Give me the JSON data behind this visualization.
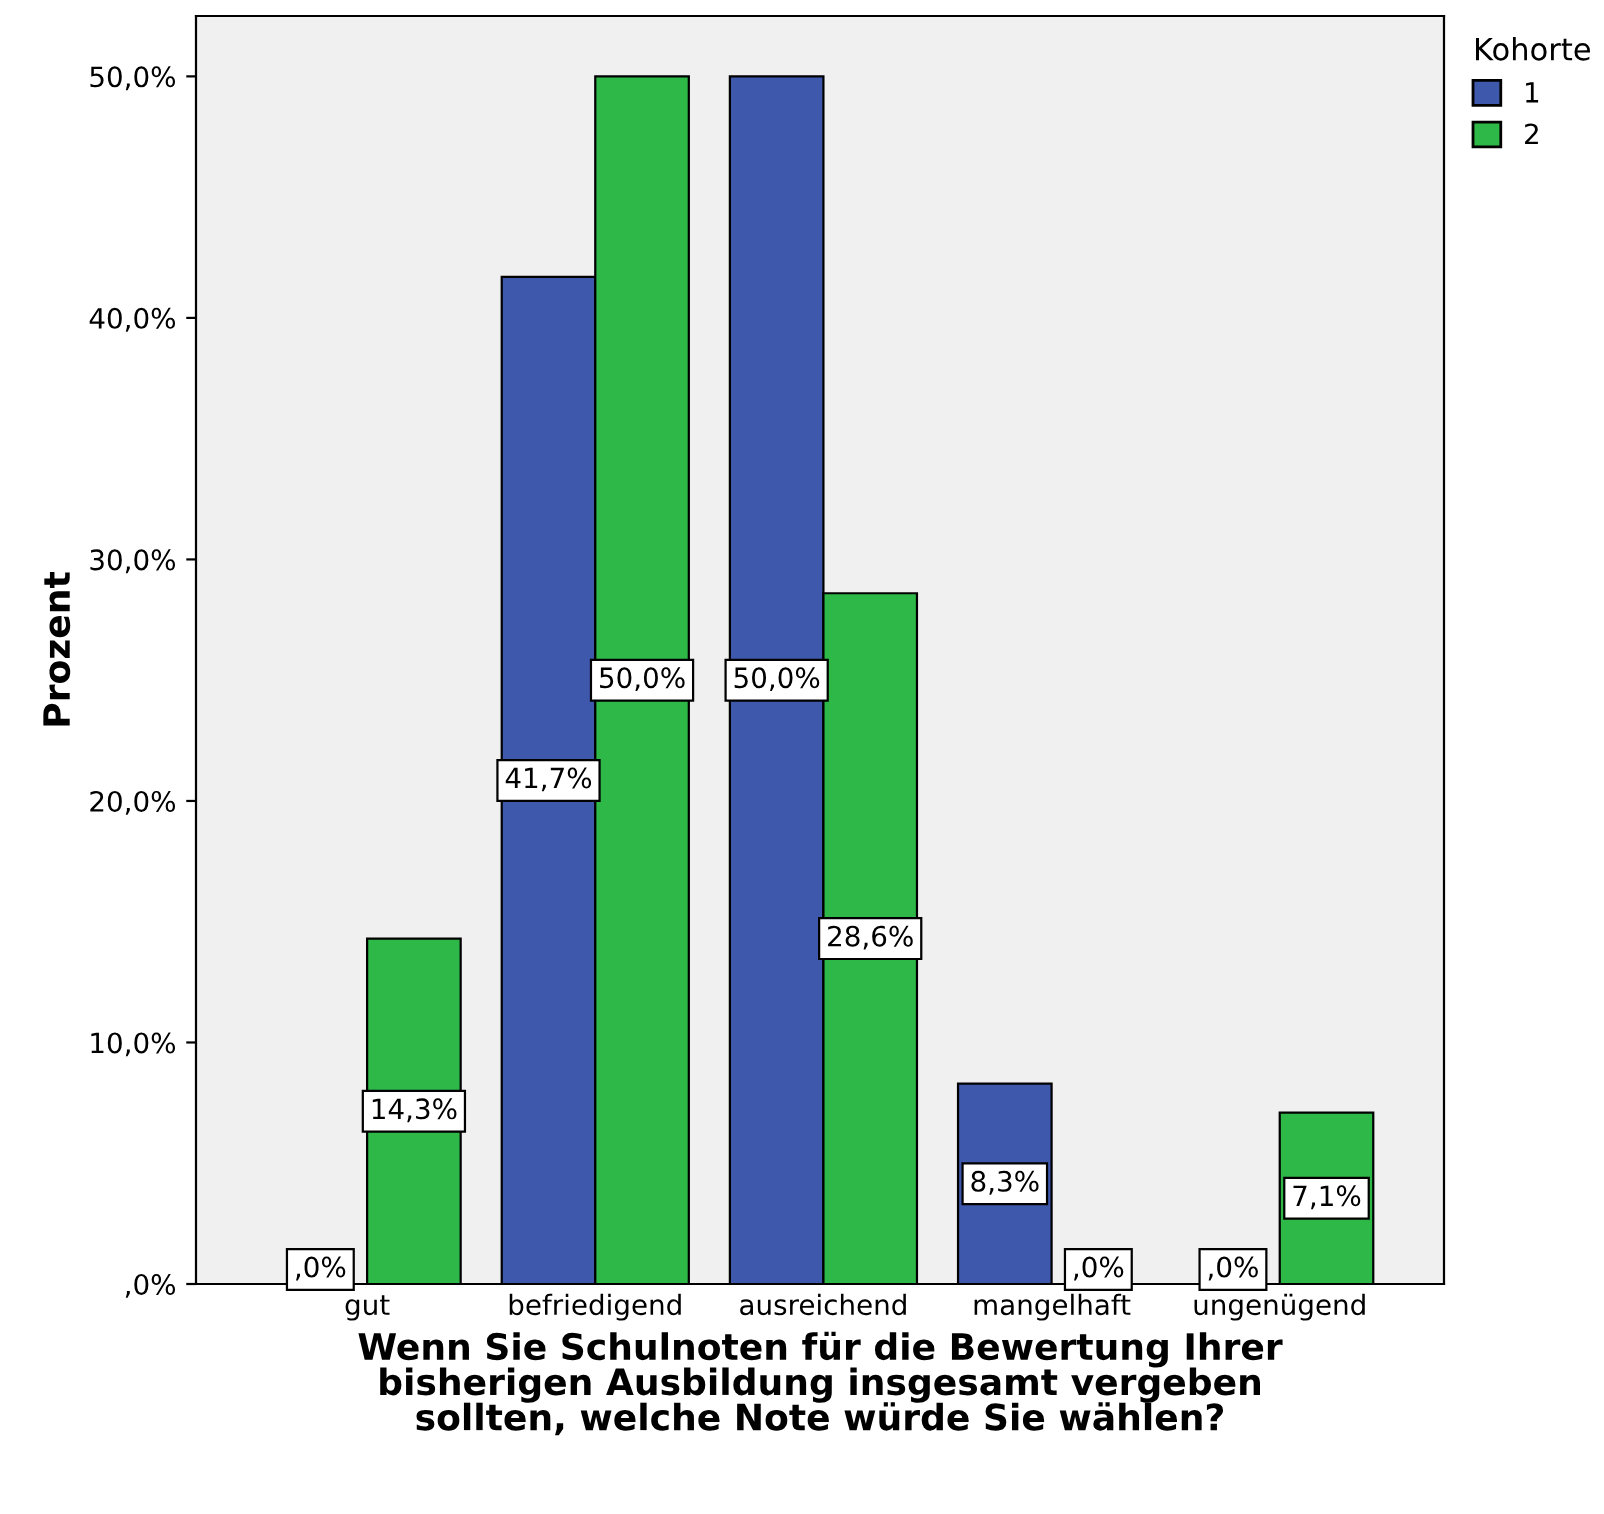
{
  "chart_data": {
    "type": "bar",
    "ylabel": "Prozent",
    "xlabel": "Wenn Sie Schulnoten für die Bewertung Ihrer\nbisherigen Ausbildung insgesamt vergeben\nsollten, welche Note würde Sie wählen?",
    "categories": [
      "gut",
      "befriedigend",
      "ausreichend",
      "mangelhaft",
      "ungenügend"
    ],
    "series": [
      {
        "name": "1",
        "color": "#3e58ac",
        "values": [
          0,
          41.7,
          50.0,
          8.3,
          0
        ],
        "value_labels": [
          ",0%",
          "41,7%",
          "50,0%",
          "8,3%",
          ",0%"
        ]
      },
      {
        "name": "2",
        "color": "#2eb848",
        "values": [
          14.3,
          50.0,
          28.6,
          0,
          7.1
        ],
        "value_labels": [
          "14,3%",
          "50,0%",
          "28,6%",
          ",0%",
          "7,1%"
        ]
      }
    ],
    "legend_title": "Kohorte",
    "legend": "top right",
    "grid": false,
    "ylim": [
      0,
      52.5
    ],
    "yticks": [
      {
        "value": 0,
        "label": ",0%"
      },
      {
        "value": 10,
        "label": "10,0%"
      },
      {
        "value": 20,
        "label": "20,0%"
      },
      {
        "value": 30,
        "label": "30,0%"
      },
      {
        "value": 40,
        "label": "40,0%"
      },
      {
        "value": 50,
        "label": "50,0%"
      }
    ]
  }
}
